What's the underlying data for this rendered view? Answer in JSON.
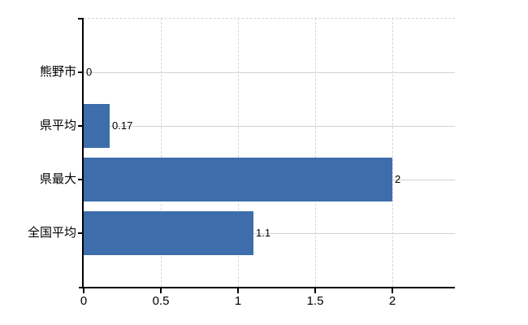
{
  "chart_data": {
    "type": "bar",
    "orientation": "horizontal",
    "title": "",
    "categories": [
      "熊野市",
      "県平均",
      "県最大",
      "全国平均"
    ],
    "values": [
      0,
      0.17,
      2,
      1.1
    ],
    "value_labels": [
      "0",
      "0.17",
      "2",
      "1.1"
    ],
    "x_ticks": [
      0,
      0.5,
      1,
      1.5,
      2
    ],
    "x_tick_labels": [
      "0",
      "0.5",
      "1",
      "1.5",
      "2"
    ],
    "xlim": [
      0,
      2.4
    ],
    "ylabel": "",
    "xlabel": "",
    "legend": "none",
    "grid": {
      "horizontal": "solid lines at each category row center",
      "vertical": "dashed lines at each x tick above 0",
      "top_border": "dashed"
    },
    "colors": {
      "bar": "#3d6dab",
      "h_gridline": "#ccd6cc",
      "v_gridline": "#d9d5d9",
      "top_border": "#d5d5d5",
      "axis": "#000000",
      "text": "#000000",
      "background": "#ffffff"
    }
  }
}
